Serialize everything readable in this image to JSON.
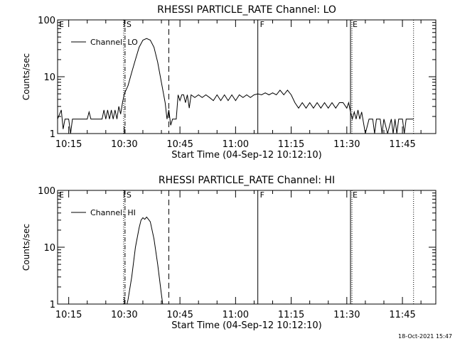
{
  "chart_data": [
    {
      "type": "line",
      "title": "RHESSI PARTICLE_RATE Channel: LO",
      "xlabel": "Start Time (04-Sep-12 10:12:10)",
      "ylabel": "Counts/sec",
      "y_scale": "log",
      "ylim": [
        1,
        100
      ],
      "y_ticks": [
        {
          "value": 1,
          "label": "1"
        },
        {
          "value": 10,
          "label": "10"
        },
        {
          "value": 100,
          "label": "100"
        }
      ],
      "xlim": [
        "10:12",
        "11:54"
      ],
      "x_ticks": [
        "10:15",
        "10:30",
        "10:45",
        "11:00",
        "11:15",
        "11:30",
        "11:45"
      ],
      "legend": {
        "placement": "top-left",
        "entries": [
          "Channel: LO"
        ]
      },
      "markers": [
        {
          "label": "E",
          "time": "10:12",
          "style": "none"
        },
        {
          "label": "S",
          "time": "10:30",
          "style": "dash-dot"
        },
        {
          "label": "",
          "time": "10:42",
          "style": "dashed"
        },
        {
          "label": "F",
          "time": "11:06",
          "style": "solid"
        },
        {
          "label": "E",
          "time": "11:31",
          "style": "solid-dotted"
        },
        {
          "label": "",
          "time": "11:48",
          "style": "dotted"
        }
      ],
      "series": [
        {
          "name": "Channel: LO",
          "points": [
            [
              "10:12",
              1.8
            ],
            [
              "10:13",
              2.6
            ],
            [
              "10:13.5",
              1.2
            ],
            [
              "10:14",
              1.8
            ],
            [
              "10:15",
              1.8
            ],
            [
              "10:15.5",
              1.0
            ],
            [
              "10:16",
              1.8
            ],
            [
              "10:20",
              1.8
            ],
            [
              "10:20.5",
              2.4
            ],
            [
              "10:21",
              1.8
            ],
            [
              "10:24",
              1.8
            ],
            [
              "10:24.5",
              2.6
            ],
            [
              "10:25",
              1.8
            ],
            [
              "10:25.5",
              2.6
            ],
            [
              "10:26",
              1.8
            ],
            [
              "10:26.5",
              2.6
            ],
            [
              "10:27",
              1.8
            ],
            [
              "10:27.5",
              2.6
            ],
            [
              "10:28",
              1.8
            ],
            [
              "10:28.5",
              3.0
            ],
            [
              "10:29",
              2.2
            ],
            [
              "10:29.5",
              3.5
            ],
            [
              "10:30",
              5.0
            ],
            [
              "10:31",
              7.0
            ],
            [
              "10:32",
              12
            ],
            [
              "10:33",
              20
            ],
            [
              "10:34",
              33
            ],
            [
              "10:35",
              44
            ],
            [
              "10:36",
              47
            ],
            [
              "10:37",
              44
            ],
            [
              "10:38",
              33
            ],
            [
              "10:39",
              18
            ],
            [
              "10:40",
              8
            ],
            [
              "10:41",
              3.5
            ],
            [
              "10:41.5",
              1.8
            ],
            [
              "10:42",
              2.6
            ],
            [
              "10:42.5",
              1.4
            ],
            [
              "10:43",
              1.8
            ],
            [
              "10:44",
              1.8
            ],
            [
              "10:44.5",
              4.8
            ],
            [
              "10:45",
              3.8
            ],
            [
              "10:45.5",
              4.8
            ],
            [
              "10:46",
              4.8
            ],
            [
              "10:46.5",
              3.5
            ],
            [
              "10:47",
              4.8
            ],
            [
              "10:47.5",
              2.8
            ],
            [
              "10:48",
              4.8
            ],
            [
              "10:49",
              4.3
            ],
            [
              "10:50",
              4.8
            ],
            [
              "10:51",
              4.3
            ],
            [
              "10:52",
              4.8
            ],
            [
              "10:53",
              4.3
            ],
            [
              "10:54",
              3.8
            ],
            [
              "10:55",
              4.8
            ],
            [
              "10:56",
              3.8
            ],
            [
              "10:57",
              4.8
            ],
            [
              "10:58",
              3.8
            ],
            [
              "10:59",
              4.8
            ],
            [
              "11:00",
              3.8
            ],
            [
              "11:01",
              4.8
            ],
            [
              "11:02",
              4.3
            ],
            [
              "11:03",
              4.8
            ],
            [
              "11:04",
              4.3
            ],
            [
              "11:05",
              4.8
            ],
            [
              "11:06",
              5.0
            ],
            [
              "11:07",
              4.8
            ],
            [
              "11:08",
              5.2
            ],
            [
              "11:09",
              4.8
            ],
            [
              "11:10",
              5.2
            ],
            [
              "11:11",
              4.8
            ],
            [
              "11:12",
              5.8
            ],
            [
              "11:13",
              4.8
            ],
            [
              "11:14",
              5.8
            ],
            [
              "11:15",
              4.8
            ],
            [
              "11:16",
              3.5
            ],
            [
              "11:17",
              2.8
            ],
            [
              "11:18",
              3.5
            ],
            [
              "11:19",
              2.8
            ],
            [
              "11:20",
              3.5
            ],
            [
              "11:21",
              2.8
            ],
            [
              "11:22",
              3.5
            ],
            [
              "11:23",
              2.8
            ],
            [
              "11:24",
              3.5
            ],
            [
              "11:25",
              2.8
            ],
            [
              "11:26",
              3.5
            ],
            [
              "11:27",
              2.8
            ],
            [
              "11:28",
              3.5
            ],
            [
              "11:29",
              3.5
            ],
            [
              "11:30",
              2.8
            ],
            [
              "11:30.5",
              3.5
            ],
            [
              "11:31",
              2.4
            ],
            [
              "11:31.5",
              1.8
            ],
            [
              "11:32",
              2.4
            ],
            [
              "11:32.5",
              1.8
            ],
            [
              "11:33",
              2.6
            ],
            [
              "11:33.5",
              1.8
            ],
            [
              "11:34",
              2.4
            ],
            [
              "11:35",
              1.0
            ],
            [
              "11:36",
              1.8
            ],
            [
              "11:37",
              1.8
            ],
            [
              "11:37.5",
              1.0
            ],
            [
              "11:38",
              1.8
            ],
            [
              "11:39",
              1.8
            ],
            [
              "11:39.5",
              1.0
            ],
            [
              "11:40",
              1.8
            ],
            [
              "11:41",
              1.0
            ],
            [
              "11:42",
              1.8
            ],
            [
              "11:42.5",
              1.0
            ],
            [
              "11:43",
              1.8
            ],
            [
              "11:43.5",
              1.0
            ],
            [
              "11:44",
              1.8
            ],
            [
              "11:45",
              1.8
            ],
            [
              "11:45.5",
              1.0
            ],
            [
              "11:46",
              1.8
            ],
            [
              "11:48",
              1.8
            ]
          ]
        }
      ]
    },
    {
      "type": "line",
      "title": "RHESSI PARTICLE_RATE Channel: HI",
      "xlabel": "Start Time (04-Sep-12 10:12:10)",
      "ylabel": "Counts/sec",
      "y_scale": "log",
      "ylim": [
        1,
        100
      ],
      "y_ticks": [
        {
          "value": 1,
          "label": "1"
        },
        {
          "value": 10,
          "label": "10"
        },
        {
          "value": 100,
          "label": "100"
        }
      ],
      "xlim": [
        "10:12",
        "11:54"
      ],
      "x_ticks": [
        "10:15",
        "10:30",
        "10:45",
        "11:00",
        "11:15",
        "11:30",
        "11:45"
      ],
      "legend": {
        "placement": "top-left",
        "entries": [
          "Channel: HI"
        ]
      },
      "markers": [
        {
          "label": "E",
          "time": "10:12",
          "style": "none"
        },
        {
          "label": "S",
          "time": "10:30",
          "style": "dash-dot"
        },
        {
          "label": "",
          "time": "10:42",
          "style": "dashed"
        },
        {
          "label": "F",
          "time": "11:06",
          "style": "solid"
        },
        {
          "label": "E",
          "time": "11:31",
          "style": "solid-dotted"
        },
        {
          "label": "",
          "time": "11:48",
          "style": "dotted"
        }
      ],
      "series": [
        {
          "name": "Channel: HI",
          "points": [
            [
              "10:30.5",
              0.85
            ],
            [
              "10:31",
              1.2
            ],
            [
              "10:32",
              3.0
            ],
            [
              "10:33",
              10
            ],
            [
              "10:34",
              22
            ],
            [
              "10:34.5",
              30
            ],
            [
              "10:35",
              33
            ],
            [
              "10:35.5",
              31
            ],
            [
              "10:36",
              34
            ],
            [
              "10:36.5",
              31
            ],
            [
              "10:37",
              28
            ],
            [
              "10:38",
              14
            ],
            [
              "10:39",
              5
            ],
            [
              "10:40",
              1.5
            ],
            [
              "10:40.5",
              0.85
            ]
          ]
        }
      ]
    }
  ],
  "footer": {
    "date_stamp": "18-Oct-2021 15:47"
  }
}
